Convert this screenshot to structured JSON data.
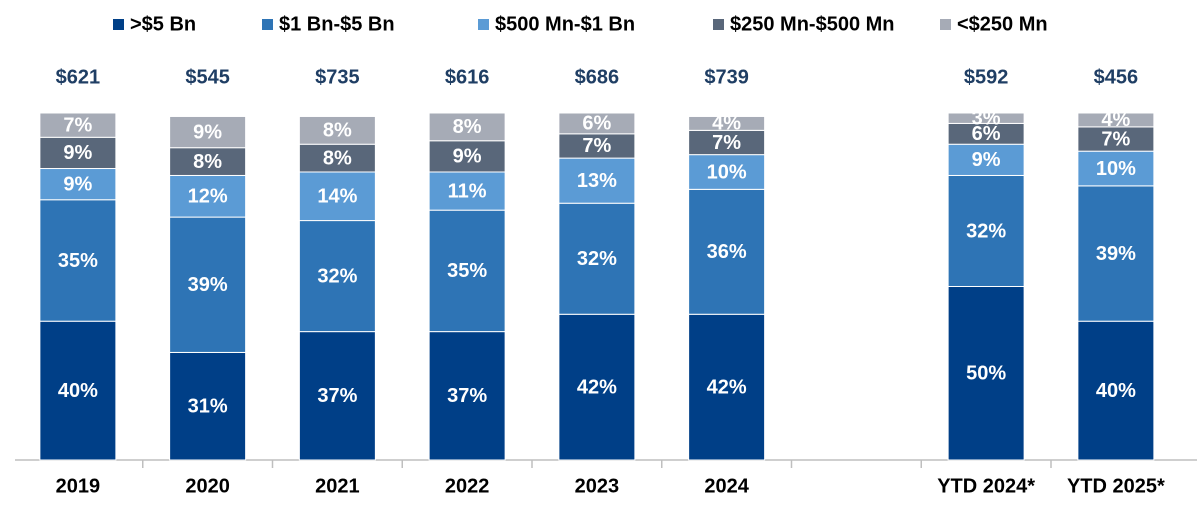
{
  "chart_data": {
    "type": "stacked-bar",
    "categories": [
      "2019",
      "2020",
      "2021",
      "2022",
      "2023",
      "2024",
      null,
      "YTD 2024*",
      "YTD 2025*"
    ],
    "series": [
      {
        "name": ">$5 Bn",
        "color": "#003f87",
        "values": [
          40,
          31,
          37,
          37,
          42,
          42,
          null,
          50,
          40
        ],
        "value_labels": [
          "40%",
          "31%",
          "37%",
          "37%",
          "42%",
          "42%",
          null,
          "50%",
          "40%"
        ]
      },
      {
        "name": "$1 Bn-$5 Bn",
        "color": "#2e74b5",
        "values": [
          35,
          39,
          32,
          35,
          32,
          36,
          null,
          32,
          39
        ],
        "value_labels": [
          "35%",
          "39%",
          "32%",
          "35%",
          "32%",
          "36%",
          null,
          "32%",
          "39%"
        ]
      },
      {
        "name": "$500 Mn-$1 Bn",
        "color": "#5b9bd5",
        "values": [
          9,
          12,
          14,
          11,
          13,
          10,
          null,
          9,
          10
        ],
        "value_labels": [
          "9%",
          "12%",
          "14%",
          "11%",
          "13%",
          "10%",
          null,
          "9%",
          "10%"
        ]
      },
      {
        "name": "$250 Mn-$500 Mn",
        "color": "#59677a",
        "values": [
          9,
          8,
          8,
          9,
          7,
          7,
          null,
          6,
          7
        ],
        "value_labels": [
          "9%",
          "8%",
          "8%",
          "9%",
          "7%",
          "7%",
          null,
          "6%",
          "7%"
        ]
      },
      {
        "name": "<$250 Mn",
        "color": "#a6abb6",
        "values": [
          7,
          9,
          8,
          8,
          6,
          4,
          null,
          3,
          4
        ],
        "value_labels": [
          "7%",
          "9%",
          "8%",
          "8%",
          "6%",
          "4%",
          null,
          "3%",
          "4%"
        ]
      }
    ],
    "totals": {
      "values": [
        621,
        545,
        735,
        616,
        686,
        739,
        null,
        592,
        456
      ],
      "value_labels": [
        "$621",
        "$545",
        "$735",
        "$616",
        "$686",
        "$739",
        null,
        "$592",
        "$456"
      ]
    },
    "ylim": [
      0,
      100
    ]
  }
}
